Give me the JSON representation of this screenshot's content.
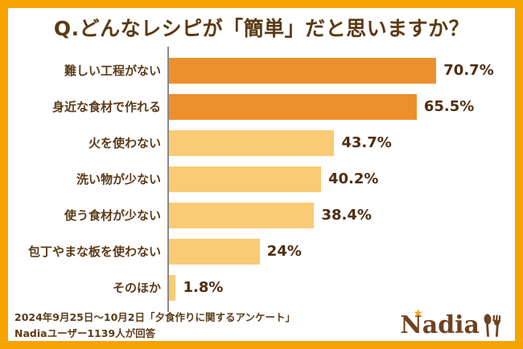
{
  "title": "Q.どんなレシピが「簡単」だと思いますか？",
  "chart_data": {
    "type": "bar",
    "orientation": "horizontal",
    "title": "Q.どんなレシピが「簡単」だと思いますか？",
    "categories": [
      "難しい工程がない",
      "身近な食材で作れる",
      "火を使わない",
      "洗い物が少ない",
      "使う食材が少ない",
      "包丁やまな板を使わない",
      "そのほか"
    ],
    "values": [
      70.7,
      65.5,
      43.7,
      40.2,
      38.4,
      24,
      1.8
    ],
    "value_labels": [
      "70.7%",
      "65.5%",
      "43.7%",
      "40.2%",
      "38.4%",
      "24%",
      "1.8%"
    ],
    "xlim": [
      0,
      85
    ],
    "grid": false,
    "legend": false,
    "bar_colors": [
      "#EE8F2D",
      "#EE8F2D",
      "#F9CB74",
      "#F9CB74",
      "#F9CB74",
      "#F9CB74",
      "#F9CB74"
    ],
    "axis_color": "#8A8A8A"
  },
  "footer": {
    "line1": "2024年9月25日～10月2日「夕食作りに関するアンケート」",
    "line2": "Nadiaユーザー1139人が回答"
  },
  "logo": {
    "text": "Nadia",
    "star": "★",
    "text_color": "#6F4220",
    "star_color": "#F7A81C"
  },
  "colors": {
    "border": "#F5A402",
    "background": "#FFFFFF",
    "title_text": "#5B3A14",
    "label_text": "#5B3B18",
    "value_text": "#4E2E10"
  }
}
